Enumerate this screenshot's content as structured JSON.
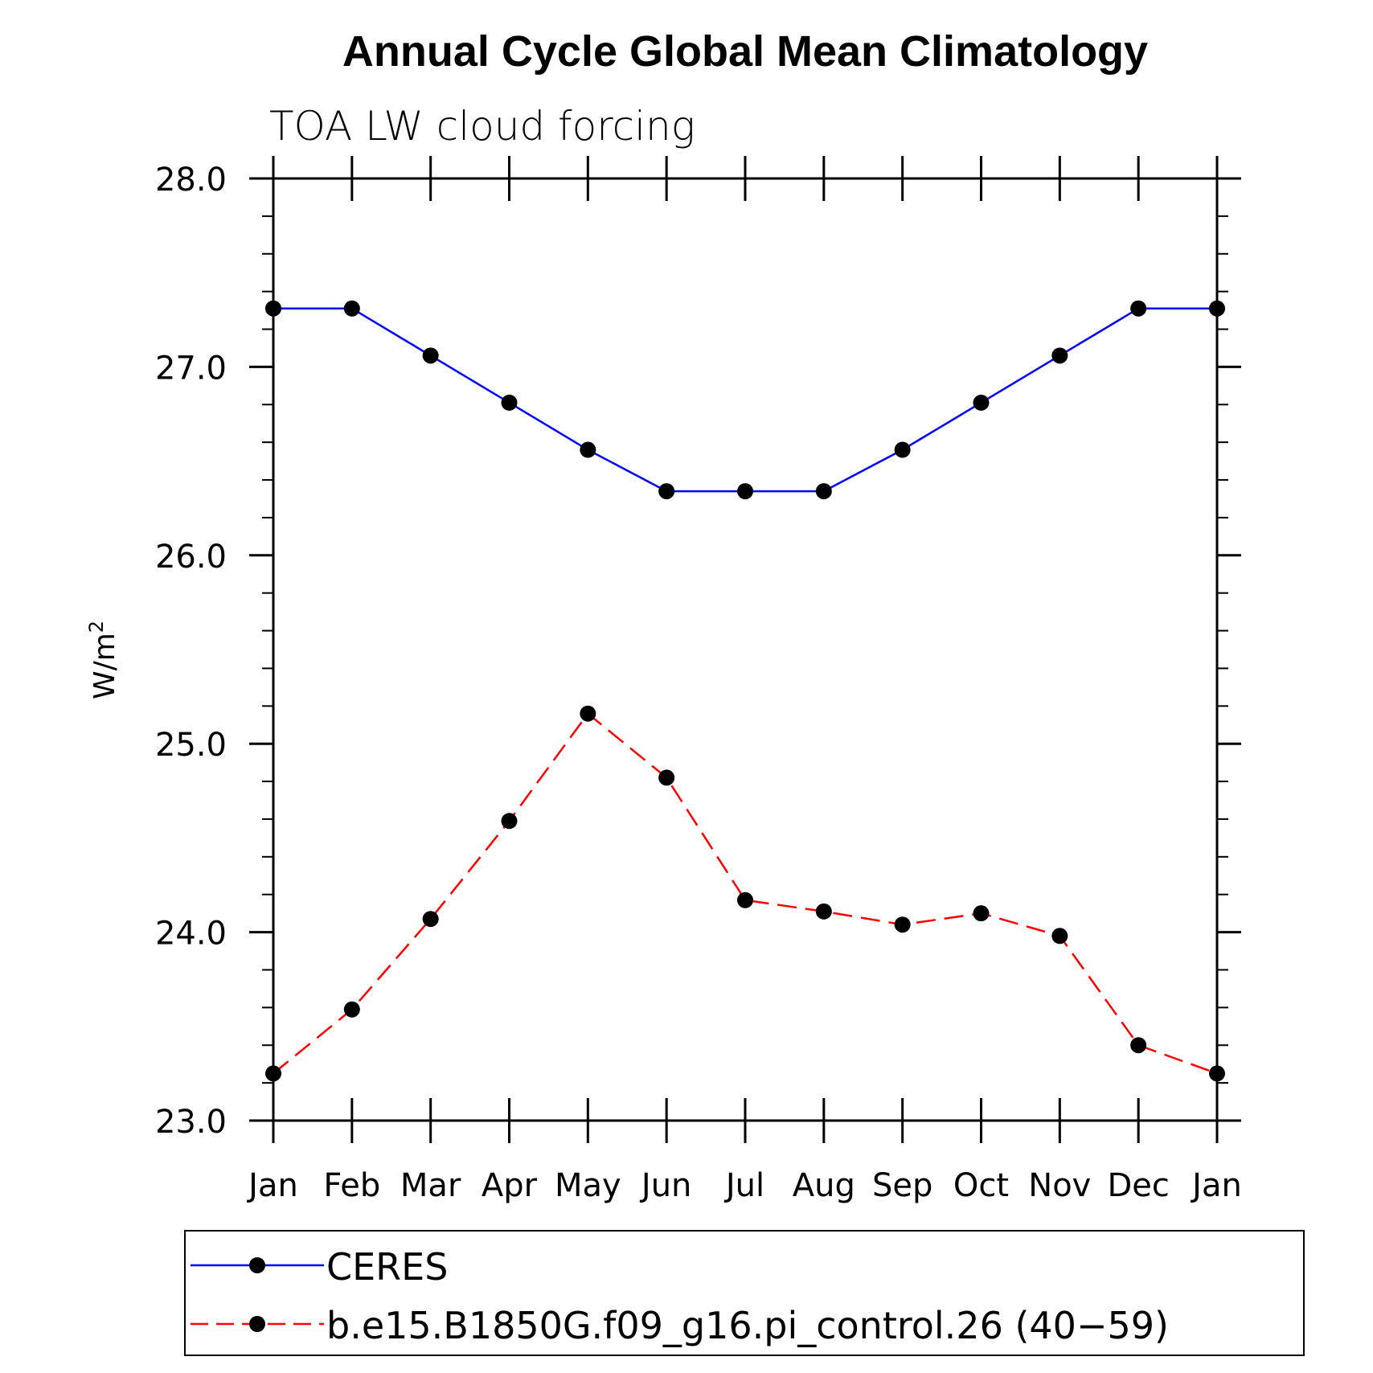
{
  "chart_data": {
    "type": "line",
    "title": "Annual Cycle Global Mean Climatology",
    "subtitle": "TOA LW cloud forcing",
    "xlabel": "",
    "ylabel": "W/m",
    "ylabel_superscript": "2",
    "categories": [
      "Jan",
      "Feb",
      "Mar",
      "Apr",
      "May",
      "Jun",
      "Jul",
      "Aug",
      "Sep",
      "Oct",
      "Nov",
      "Dec",
      "Jan"
    ],
    "ylim": [
      23.0,
      28.0
    ],
    "yticks": [
      "23.0",
      "24.0",
      "25.0",
      "26.0",
      "27.0",
      "28.0"
    ],
    "y_minor_step": 0.2,
    "grid": false,
    "legend_position": "bottom",
    "series": [
      {
        "name": "CERES",
        "color": "#0000ff",
        "dashed": false,
        "values": [
          27.31,
          27.31,
          27.06,
          26.81,
          26.56,
          26.34,
          26.34,
          26.34,
          26.56,
          26.81,
          27.06,
          27.31,
          27.31
        ]
      },
      {
        "name": "b.e15.B1850G.f09_g16.pi_control.26 (40−59)",
        "color": "#ff0000",
        "dashed": true,
        "values": [
          23.25,
          23.59,
          24.07,
          24.59,
          25.16,
          24.82,
          24.17,
          24.11,
          24.04,
          24.1,
          23.98,
          23.4,
          23.25
        ]
      }
    ]
  }
}
